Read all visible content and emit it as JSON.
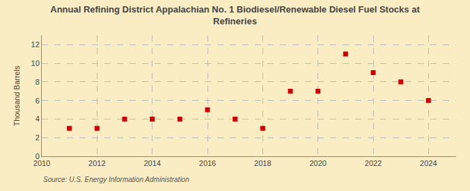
{
  "chart_data": {
    "type": "scatter",
    "title": "Annual Refining District Appalachian No. 1 Biodiesel/Renewable Diesel Fuel Stocks at\nRefineries",
    "ylabel": "Thousand Barrels",
    "source": "Source: U.S. Energy Information Administration",
    "x": [
      2011,
      2012,
      2013,
      2014,
      2015,
      2016,
      2017,
      2018,
      2019,
      2020,
      2021,
      2022,
      2023,
      2024
    ],
    "values": [
      3,
      3,
      4,
      4,
      4,
      5,
      4,
      3,
      7,
      7,
      11,
      9,
      8,
      6
    ],
    "color": "#cc0000",
    "marker": "square",
    "xlim": [
      2010,
      2025
    ],
    "xticks": [
      2010,
      2012,
      2014,
      2016,
      2018,
      2020,
      2022,
      2024
    ],
    "ylim": [
      0,
      13
    ],
    "yticks": [
      0,
      2,
      4,
      6,
      8,
      10,
      12
    ],
    "grid": true
  }
}
